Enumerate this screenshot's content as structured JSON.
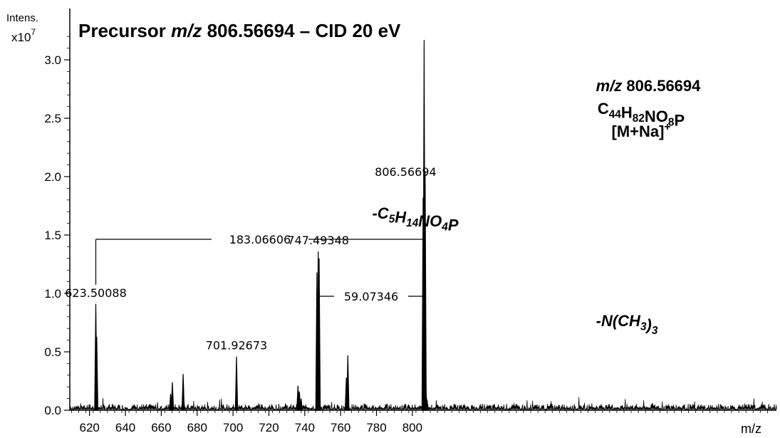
{
  "chart_data": {
    "type": "line",
    "title": {
      "prefix": "Precursor ",
      "mz_italic": "m/z",
      "suffix": " 806.56694 – CID 20 eV"
    },
    "y_axis_label_line1": "Intens.",
    "y_axis_label_line2_base": "x10",
    "y_axis_label_line2_exp": "7",
    "x_axis_label": "m/z",
    "xlim": [
      609,
      1003
    ],
    "ylim": [
      0,
      3.3
    ],
    "x_ticks": [
      "620",
      "640",
      "660",
      "680",
      "700",
      "720",
      "740",
      "760",
      "780",
      "800"
    ],
    "y_ticks": [
      "0.0",
      "0.5",
      "1.0",
      "1.5",
      "2.0",
      "2.5",
      "3.0"
    ],
    "peaks": [
      {
        "x": 623.50088,
        "y": 0.91,
        "label": "623.50088"
      },
      {
        "x": 624.0,
        "y": 0.63
      },
      {
        "x": 665.2,
        "y": 0.14
      },
      {
        "x": 666.2,
        "y": 0.24
      },
      {
        "x": 672.2,
        "y": 0.31
      },
      {
        "x": 701.92673,
        "y": 0.46,
        "label": "701.92673"
      },
      {
        "x": 736.2,
        "y": 0.21
      },
      {
        "x": 737.0,
        "y": 0.16
      },
      {
        "x": 738.0,
        "y": 0.1
      },
      {
        "x": 746.8,
        "y": 1.18
      },
      {
        "x": 747.49348,
        "y": 1.36,
        "label": "747.49348"
      },
      {
        "x": 748.0,
        "y": 1.3
      },
      {
        "x": 763.2,
        "y": 0.28
      },
      {
        "x": 764.0,
        "y": 0.47
      },
      {
        "x": 806.0,
        "y": 1.82
      },
      {
        "x": 806.56694,
        "y": 3.17,
        "label": "806.56694"
      },
      {
        "x": 807.1,
        "y": 2.05
      },
      {
        "x": 807.6,
        "y": 0.18
      },
      {
        "x": 808.2,
        "y": 0.09
      }
    ],
    "annotations": [
      {
        "id": "loss1",
        "from_x": 623.50088,
        "to_x": 806.56694,
        "y": 1.45,
        "value": "183.06606",
        "formula_sign": "-",
        "formula": [
          [
            "C",
            ""
          ],
          [
            "5",
            "sub"
          ],
          [
            "H",
            ""
          ],
          [
            "14",
            "sub"
          ],
          [
            "NO",
            ""
          ],
          [
            "4",
            "sub"
          ],
          [
            "P",
            ""
          ]
        ]
      },
      {
        "id": "loss2",
        "from_x": 747.49348,
        "to_x": 806.56694,
        "y": 0.97,
        "value": "59.07346",
        "formula_sign": "-",
        "formula": [
          [
            "N(CH",
            ""
          ],
          [
            "3",
            "sub"
          ],
          [
            ")",
            ""
          ],
          [
            "3",
            "sub"
          ]
        ]
      }
    ],
    "precursor_label": {
      "mz_italic": "m/z",
      "mz_value": " 806.56694",
      "formula": [
        [
          "C",
          ""
        ],
        [
          "44",
          "sub"
        ],
        [
          "H",
          ""
        ],
        [
          "82",
          "sub"
        ],
        [
          "NO",
          ""
        ],
        [
          "8",
          "sub"
        ],
        [
          "P",
          ""
        ]
      ],
      "adduct": [
        [
          "[M+Na]",
          ""
        ],
        [
          "+",
          "sup"
        ]
      ]
    }
  }
}
